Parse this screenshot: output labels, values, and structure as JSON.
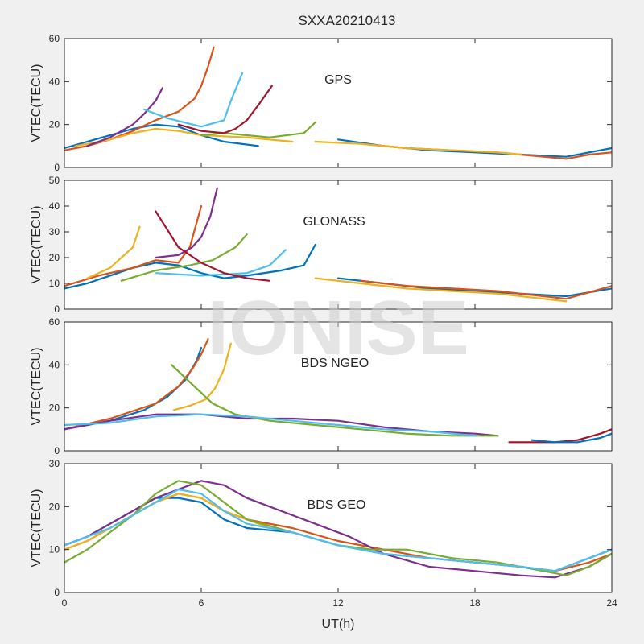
{
  "chart_data": {
    "type": "line",
    "title": "SXXA20210413",
    "xlabel": "UT(h)",
    "xlim": [
      0,
      24
    ],
    "xticks": [
      "0",
      "6",
      "12",
      "18",
      "24"
    ],
    "watermark": "IONISE",
    "grid": false,
    "legend": "none",
    "colors": [
      "#0072BD",
      "#D95319",
      "#EDB120",
      "#7E2F8E",
      "#77AC30",
      "#4DBEEE",
      "#A2142F"
    ],
    "panels": [
      {
        "label": "GPS",
        "ylabel": "VTEC(TECU)",
        "ylim": [
          0,
          60
        ],
        "yticks": [
          "0",
          "20",
          "40",
          "60"
        ],
        "series": [
          {
            "x": [
              0,
              1,
              2,
              3,
              4,
              5,
              6,
              7,
              8.5
            ],
            "y": [
              9,
              12,
              15,
              18,
              20,
              19,
              15,
              12,
              10
            ]
          },
          {
            "x": [
              0,
              1,
              2,
              3,
              4,
              5,
              5.7,
              6,
              6.3,
              6.55
            ],
            "y": [
              8,
              10,
              13,
              17,
              22,
              26,
              32,
              38,
              47,
              56
            ]
          },
          {
            "x": [
              0.5,
              2,
              3,
              4,
              5,
              6,
              8,
              10
            ],
            "y": [
              10,
              13,
              16,
              18,
              17,
              15,
              14,
              12
            ]
          },
          {
            "x": [
              1,
              2,
              3,
              3.5,
              4,
              4.3
            ],
            "y": [
              10,
              14,
              20,
              25,
              31,
              37
            ]
          },
          {
            "x": [
              6,
              7,
              8,
              9,
              10.5,
              11
            ],
            "y": [
              15,
              16,
              15,
              14,
              16,
              21
            ]
          },
          {
            "x": [
              3.5,
              4.5,
              6,
              7,
              7.3,
              7.8
            ],
            "y": [
              27,
              23,
              19,
              22,
              31,
              44
            ]
          },
          {
            "x": [
              5,
              6,
              7,
              7.5,
              8,
              8.5,
              9.1
            ],
            "y": [
              20,
              17,
              16,
              18,
              22,
              29,
              38
            ]
          },
          {
            "x": [
              12,
              14,
              16,
              18,
              20,
              22,
              24
            ],
            "y": [
              13,
              10,
              8,
              7,
              6,
              5,
              9
            ]
          },
          {
            "x": [
              13,
              15,
              17,
              19,
              21,
              22,
              23,
              24
            ],
            "y": [
              11,
              9,
              8,
              7,
              5,
              4,
              6,
              7
            ]
          },
          {
            "x": [
              11,
              13,
              15,
              17,
              19,
              20
            ],
            "y": [
              12,
              11,
              9,
              8,
              7,
              6
            ]
          }
        ]
      },
      {
        "label": "GLONASS",
        "ylabel": "VTEC(TECU)",
        "ylim": [
          0,
          50
        ],
        "yticks": [
          "0",
          "10",
          "20",
          "30",
          "40",
          "50"
        ],
        "series": [
          {
            "x": [
              0,
              1,
              2,
              3,
              4,
              5,
              6,
              7,
              8,
              9.5,
              10.5,
              11
            ],
            "y": [
              8,
              10,
              13,
              16,
              18,
              17,
              14,
              12,
              13,
              15,
              17,
              25
            ]
          },
          {
            "x": [
              0,
              1.5,
              3,
              4,
              5,
              5.5,
              6
            ],
            "y": [
              9,
              13,
              16,
              19,
              18,
              24,
              40
            ]
          },
          {
            "x": [
              1,
              2,
              3,
              3.3
            ],
            "y": [
              12,
              16,
              24,
              32
            ]
          },
          {
            "x": [
              4,
              5,
              5.6,
              6,
              6.4,
              6.7
            ],
            "y": [
              20,
              21,
              24,
              28,
              36,
              47
            ]
          },
          {
            "x": [
              2.5,
              4,
              5.5,
              6.5,
              7.5,
              8
            ],
            "y": [
              11,
              15,
              17,
              19,
              24,
              29
            ]
          },
          {
            "x": [
              4,
              6,
              8,
              9,
              9.7
            ],
            "y": [
              14,
              13,
              14,
              17,
              23
            ]
          },
          {
            "x": [
              4,
              5,
              6,
              7,
              8,
              9
            ],
            "y": [
              38,
              24,
              18,
              14,
              12,
              11
            ]
          },
          {
            "x": [
              12,
              14,
              16,
              18,
              20,
              22,
              24
            ],
            "y": [
              12,
              10,
              8,
              7,
              6,
              5,
              8
            ]
          },
          {
            "x": [
              13,
              15,
              17,
              19,
              21,
              22,
              24
            ],
            "y": [
              11,
              9,
              8,
              7,
              5,
              4,
              9
            ]
          },
          {
            "x": [
              11,
              13,
              15,
              17,
              19,
              21,
              22
            ],
            "y": [
              12,
              10,
              8,
              7,
              6,
              4,
              3
            ]
          }
        ]
      },
      {
        "label": "BDS NGEO",
        "ylabel": "VTEC(TECU)",
        "ylim": [
          0,
          60
        ],
        "yticks": [
          "0",
          "20",
          "40",
          "60"
        ],
        "series": [
          {
            "x": [
              0,
              2,
              3.5,
              4.5,
              5.3,
              5.8,
              6.0
            ],
            "y": [
              10,
              14,
              19,
              25,
              33,
              42,
              48
            ]
          },
          {
            "x": [
              0,
              2,
              4,
              5,
              5.6,
              6,
              6.3
            ],
            "y": [
              10,
              15,
              22,
              30,
              38,
              45,
              52
            ]
          },
          {
            "x": [
              4.8,
              5.5,
              6.2,
              6.6,
              7,
              7.3
            ],
            "y": [
              19,
              21,
              24,
              29,
              38,
              50
            ]
          },
          {
            "x": [
              0,
              2,
              4,
              6,
              8,
              10,
              12,
              14,
              16,
              18,
              19
            ],
            "y": [
              10,
              14,
              17,
              17,
              15,
              15,
              14,
              11,
              9,
              8,
              7
            ]
          },
          {
            "x": [
              4.7,
              5.5,
              6.5,
              7.5,
              9,
              11,
              13,
              15,
              17,
              19
            ],
            "y": [
              40,
              32,
              22,
              17,
              14,
              12,
              10,
              8,
              7,
              7
            ]
          },
          {
            "x": [
              0,
              2,
              4,
              6,
              8,
              10,
              12,
              14,
              16,
              18
            ],
            "y": [
              12,
              13,
              16,
              17,
              16,
              14,
              12,
              10,
              9,
              7
            ]
          },
          {
            "x": [
              19.5,
              20.5,
              21.5,
              22.5,
              23.5,
              24
            ],
            "y": [
              4,
              4,
              4,
              5,
              8,
              10
            ]
          },
          {
            "x": [
              20.5,
              21.5,
              22.5,
              23.5,
              24
            ],
            "y": [
              5,
              4,
              4,
              6,
              8
            ]
          }
        ]
      },
      {
        "label": "BDS GEO",
        "ylabel": "VTEC(TECU)",
        "ylim": [
          0,
          30
        ],
        "yticks": [
          "0",
          "10",
          "20",
          "30"
        ],
        "series": [
          {
            "x": [
              0,
              1,
              2,
              3,
              4,
              5,
              6,
              7,
              8,
              10,
              12,
              14,
              16,
              18,
              20,
              21.5,
              23,
              24
            ],
            "y": [
              11,
              13,
              16,
              19,
              22,
              22,
              21,
              17,
              15,
              14,
              11,
              9,
              8,
              7,
              6,
              5,
              8,
              10
            ]
          },
          {
            "x": [
              0,
              1,
              2,
              3,
              4,
              5,
              6,
              7,
              8,
              10,
              12,
              14,
              16,
              18,
              20,
              21.5,
              23,
              24
            ],
            "y": [
              10,
              12,
              15,
              18,
              21,
              23,
              22,
              19,
              17,
              15,
              12,
              10,
              8,
              7,
              6,
              5,
              7,
              9
            ]
          },
          {
            "x": [
              0,
              1,
              2,
              3,
              4,
              5,
              6,
              7,
              8,
              9
            ],
            "y": [
              10,
              12,
              15,
              18,
              21,
              23,
              22,
              19,
              17,
              15
            ]
          },
          {
            "x": [
              0,
              1,
              2,
              3,
              4,
              5,
              6,
              7,
              8,
              10,
              12.5,
              14,
              16,
              18,
              20,
              21.5,
              23,
              24
            ],
            "y": [
              11,
              13,
              16,
              19,
              22,
              24,
              26,
              25,
              22,
              18,
              13,
              9,
              6,
              5,
              4,
              3.5,
              6,
              9
            ]
          },
          {
            "x": [
              0,
              1,
              2,
              3,
              4,
              5,
              6,
              7,
              8,
              10,
              12,
              13.5,
              15,
              17,
              19,
              21,
              22,
              23,
              24
            ],
            "y": [
              7,
              10,
              14,
              18,
              23,
              26,
              25,
              21,
              17,
              14,
              11,
              10,
              10,
              8,
              7,
              5,
              4,
              6,
              9
            ]
          },
          {
            "x": [
              0,
              2,
              4,
              5,
              6,
              7,
              8,
              10,
              12,
              14,
              16,
              18,
              20,
              21.5,
              23,
              24
            ],
            "y": [
              11,
              15,
              21,
              24,
              23,
              19,
              16,
              14,
              11,
              9,
              8,
              7,
              6,
              5,
              8,
              10
            ]
          }
        ]
      }
    ]
  }
}
